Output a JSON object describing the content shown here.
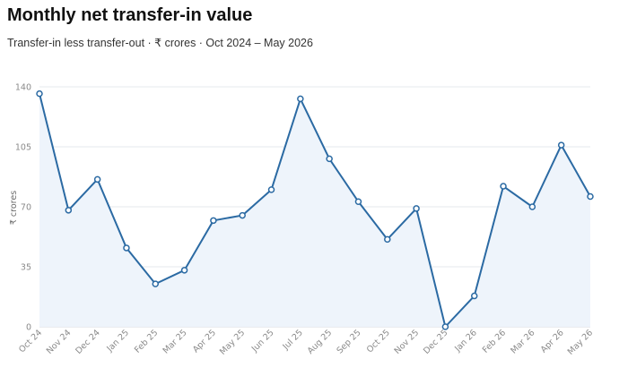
{
  "header": {
    "title": "Monthly net transfer-in value",
    "subtitle": "Transfer-in less transfer-out · ₹ crores · Oct 2024 – May 2026"
  },
  "colors": {
    "line": "#2b6aa3",
    "area": "#eef4fb",
    "grid": "#e6e8ec",
    "point_fill": "#ffffff"
  },
  "chart_data": {
    "type": "line",
    "title": "Monthly net transfer-in value",
    "subtitle": "Transfer-in less transfer-out · ₹ crores · Oct 2024 – May 2026",
    "xlabel": "",
    "ylabel": "₹ crores",
    "ylim": [
      0,
      140
    ],
    "yticks": [
      0,
      35,
      70,
      105,
      140
    ],
    "grid": true,
    "area_fill": true,
    "categories": [
      "Oct 24",
      "Nov 24",
      "Dec 24",
      "Jan 25",
      "Feb 25",
      "Mar 25",
      "Apr 25",
      "May 25",
      "Jun 25",
      "Jul 25",
      "Aug 25",
      "Sep 25",
      "Oct 25",
      "Nov 25",
      "Dec 25",
      "Jan 26",
      "Feb 26",
      "Mar 26",
      "Apr 26",
      "May 26"
    ],
    "series": [
      {
        "values": [
          136,
          68,
          86,
          46,
          25,
          33,
          62,
          65,
          80,
          133,
          98,
          73,
          51,
          69,
          0,
          18,
          82,
          70,
          106,
          76
        ]
      }
    ]
  }
}
